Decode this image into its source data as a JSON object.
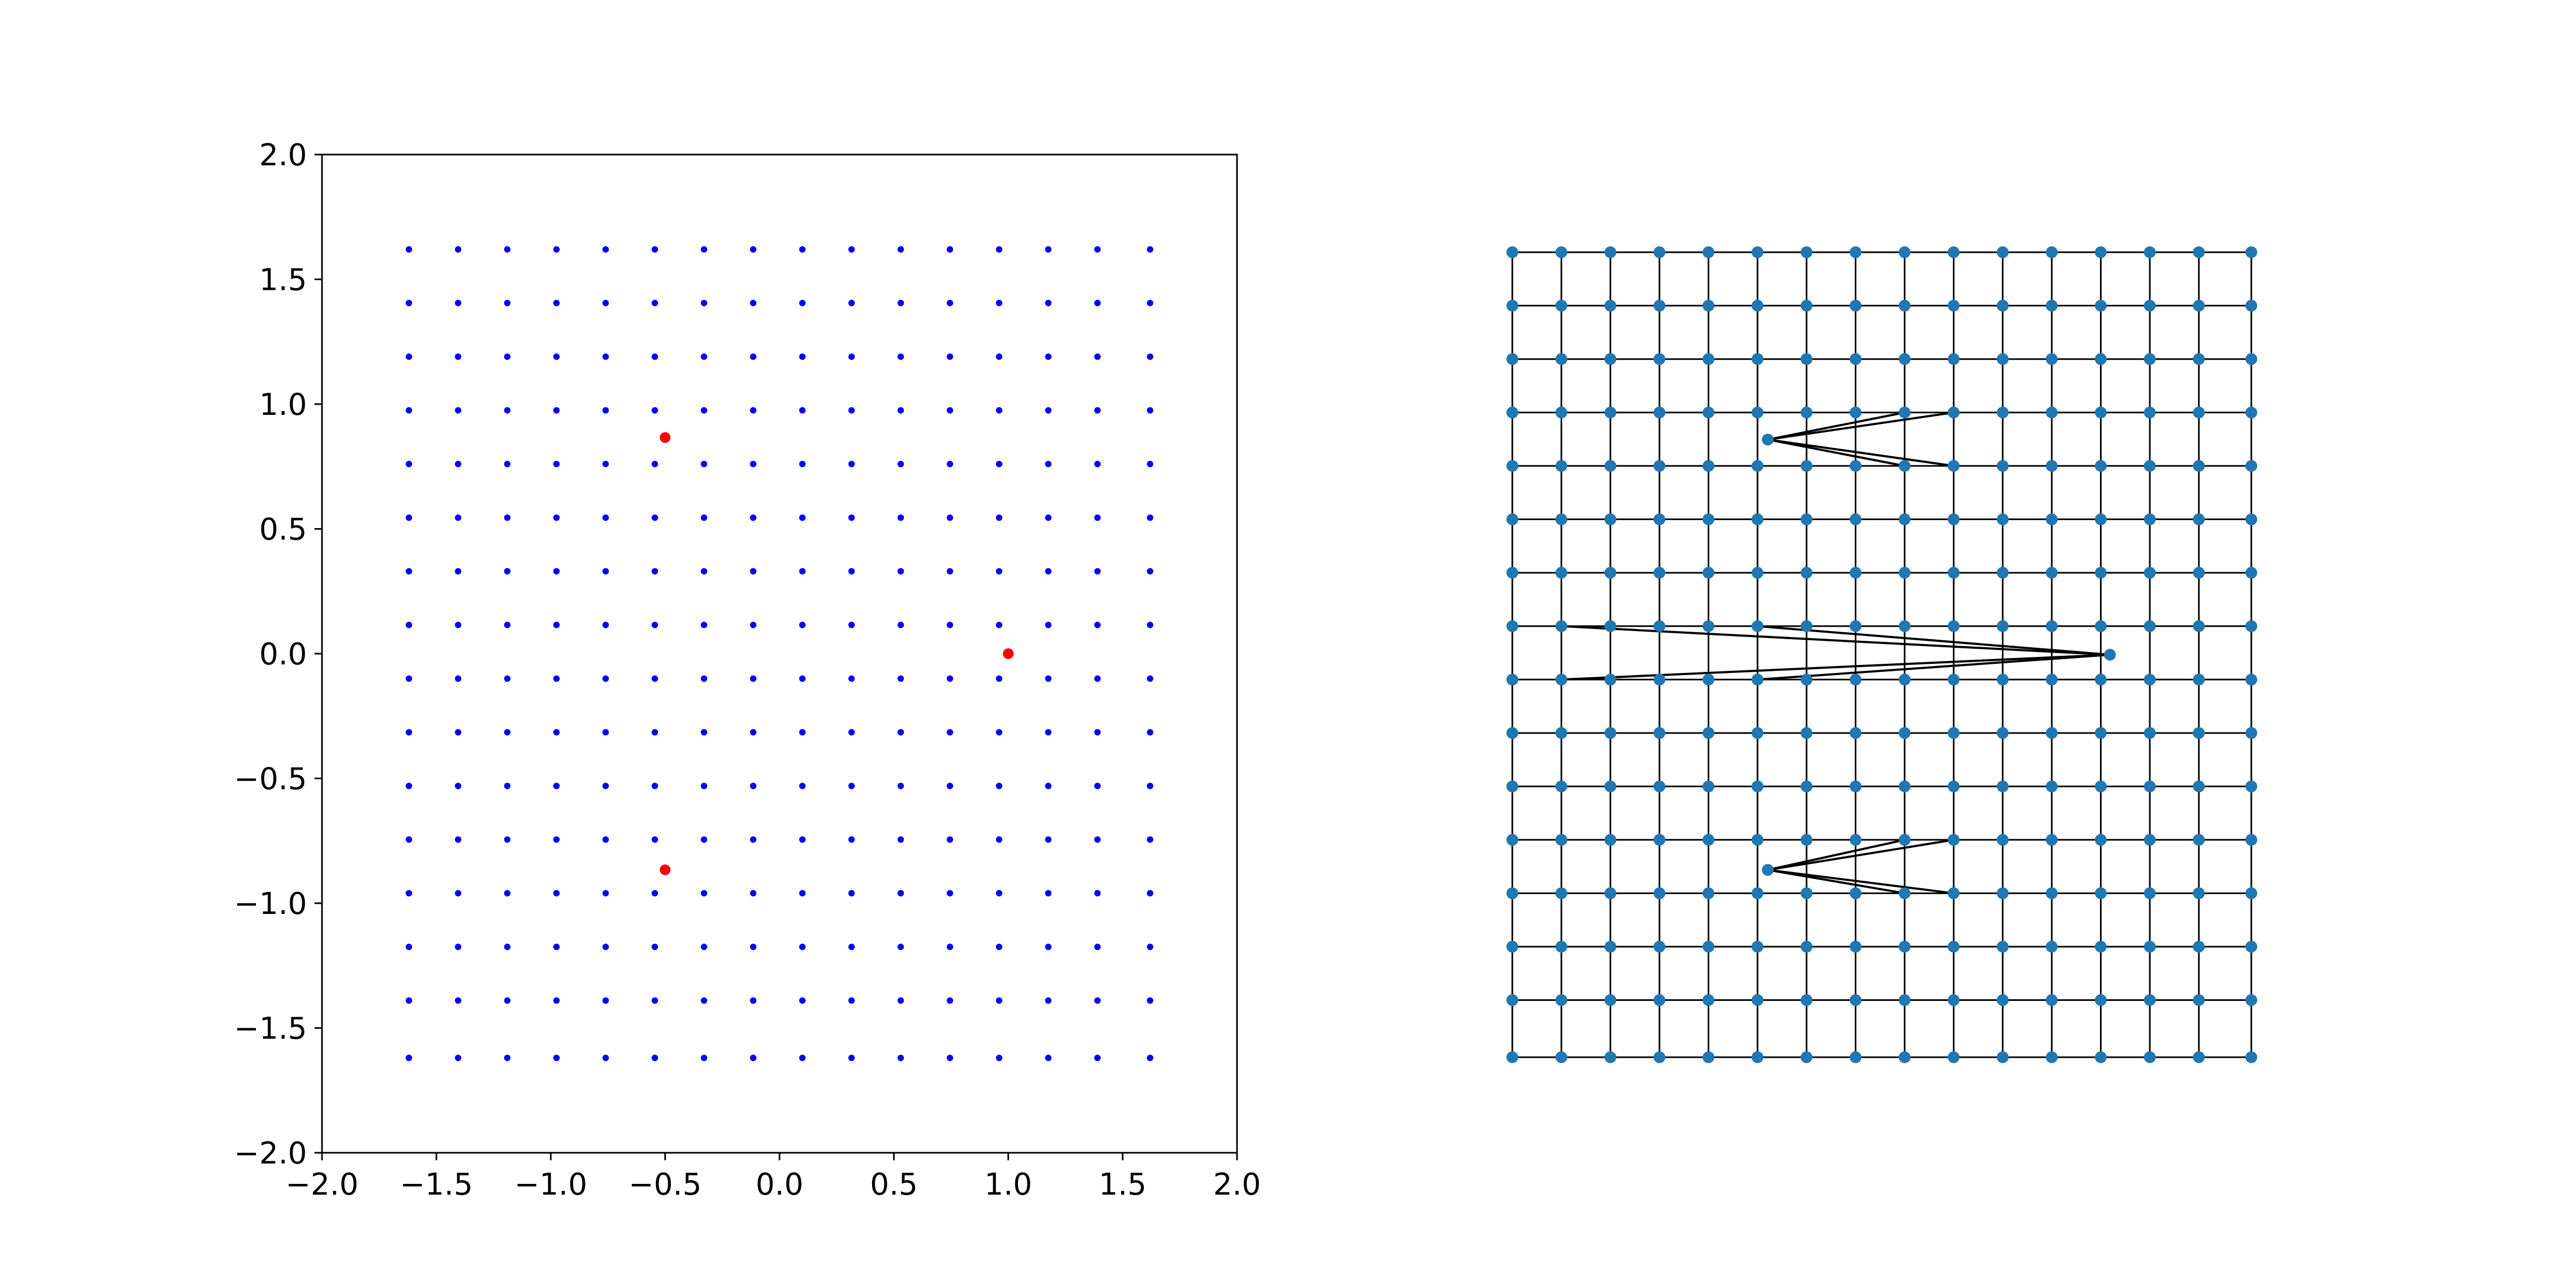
{
  "chart_data": [
    {
      "type": "scatter",
      "title": "",
      "xlabel": "",
      "ylabel": "",
      "xlim": [
        -2.0,
        2.0
      ],
      "ylim": [
        -2.0,
        2.0
      ],
      "grid": false,
      "xticks": [
        "−2.0",
        "−1.5",
        "−1.0",
        "−0.5",
        "0.0",
        "0.5",
        "1.0",
        "1.5",
        "2.0"
      ],
      "yticks": [
        "−2.0",
        "−1.5",
        "−1.0",
        "−0.5",
        "0.0",
        "0.5",
        "1.0",
        "1.5",
        "2.0"
      ],
      "series": [
        {
          "color": "#0000ff",
          "marker": "small dot",
          "grid_x_values": [
            -1.62,
            -1.405,
            -1.19,
            -0.975,
            -0.76,
            -0.545,
            -0.33,
            -0.115,
            0.1,
            0.315,
            0.53,
            0.745,
            0.96,
            1.175,
            1.39,
            1.62
          ],
          "grid_y_values": [
            1.62,
            1.405,
            1.19,
            0.975,
            0.76,
            0.545,
            0.33,
            0.115,
            -0.1,
            -0.315,
            -0.53,
            -0.745,
            -0.96,
            -1.175,
            -1.39,
            -1.62
          ],
          "point_count": 256
        },
        {
          "color": "#ff0000",
          "marker": "dot",
          "points": [
            [
              -0.5,
              0.866
            ],
            [
              1.0,
              0.0
            ],
            [
              -0.5,
              -0.866
            ]
          ]
        }
      ]
    },
    {
      "type": "network",
      "title": "",
      "node_color": "#1f77b4",
      "edge_color": "#000000",
      "description_of_structure": "16x16 lattice of nodes connected to horizontal and vertical neighbours; three extra nodes inserted between rows with long edges",
      "extra_nodes": [
        {
          "x": -0.5,
          "y": 0.866,
          "connects_between_rows": [
            0.975,
            0.76
          ]
        },
        {
          "x": 1.0,
          "y": 0.0,
          "connects_between_rows": [
            0.115,
            -0.1
          ]
        },
        {
          "x": -0.5,
          "y": -0.866,
          "connects_between_rows": [
            -0.745,
            -0.96
          ]
        }
      ]
    }
  ]
}
